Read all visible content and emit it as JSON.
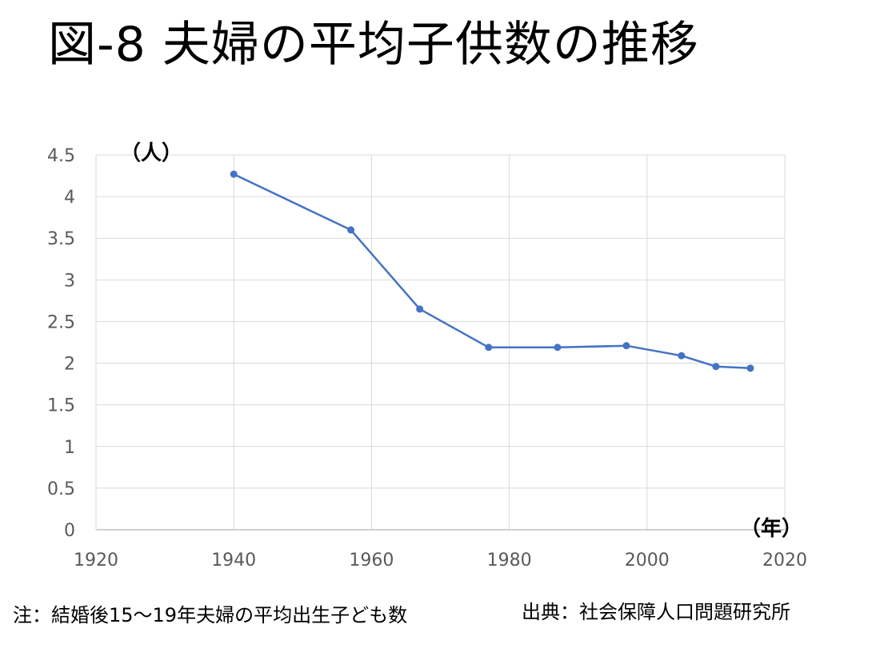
{
  "page": {
    "title": "図-8 夫婦の平均子供数の推移",
    "note": "注：結婚後15～19年夫婦の平均出生子ども数",
    "source": "出典：社会保障人口問題研究所"
  },
  "chart_data": {
    "type": "line",
    "title": "図-8 夫婦の平均子供数の推移",
    "xlabel": "（年）",
    "ylabel": "（人）",
    "xlim": [
      1920,
      2020
    ],
    "ylim": [
      0,
      4.5
    ],
    "x_ticks": [
      "1920",
      "1940",
      "1960",
      "1980",
      "2000",
      "2020"
    ],
    "y_ticks": [
      "0",
      "0.5",
      "1",
      "1.5",
      "2",
      "2.5",
      "3",
      "3.5",
      "4",
      "4.5"
    ],
    "x_tick_values": [
      1920,
      1940,
      1960,
      1980,
      2000,
      2020
    ],
    "y_tick_values": [
      0,
      0.5,
      1,
      1.5,
      2,
      2.5,
      3,
      3.5,
      4,
      4.5
    ],
    "grid": true,
    "legend": "none",
    "series": [
      {
        "color": "#4472c4",
        "x": [
          1940,
          1957,
          1967,
          1977,
          1987,
          1997,
          2005,
          2010,
          2015
        ],
        "y": [
          4.27,
          3.6,
          2.65,
          2.19,
          2.19,
          2.21,
          2.09,
          1.96,
          1.94
        ]
      }
    ]
  }
}
